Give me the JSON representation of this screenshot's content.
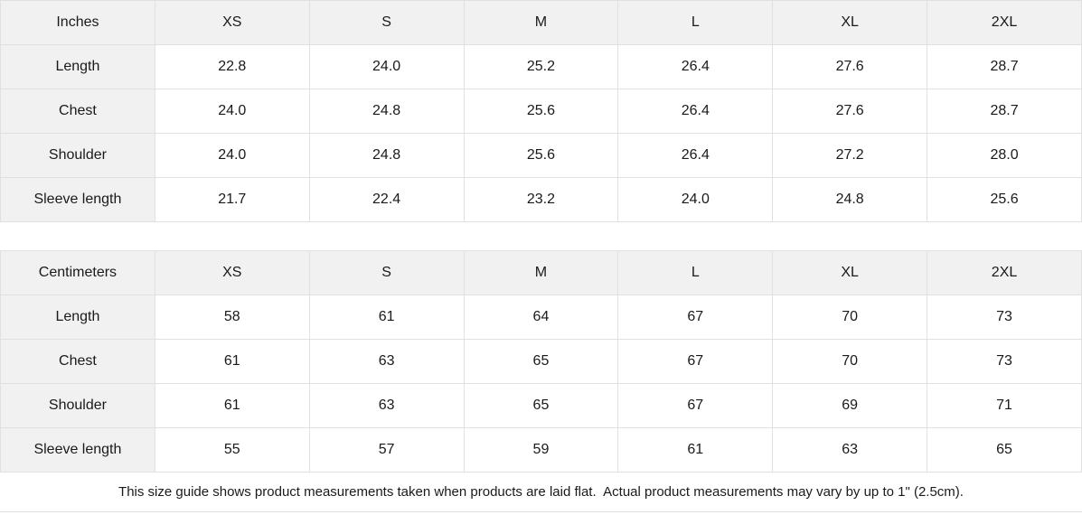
{
  "size_guide": {
    "columns": [
      "XS",
      "S",
      "M",
      "L",
      "XL",
      "2XL"
    ],
    "tables": [
      {
        "unit_label": "Inches",
        "rows": [
          {
            "label": "Length",
            "values": [
              "22.8",
              "24.0",
              "25.2",
              "26.4",
              "27.6",
              "28.7"
            ]
          },
          {
            "label": "Chest",
            "values": [
              "24.0",
              "24.8",
              "25.6",
              "26.4",
              "27.6",
              "28.7"
            ]
          },
          {
            "label": "Shoulder",
            "values": [
              "24.0",
              "24.8",
              "25.6",
              "26.4",
              "27.2",
              "28.0"
            ]
          },
          {
            "label": "Sleeve length",
            "values": [
              "21.7",
              "22.4",
              "23.2",
              "24.0",
              "24.8",
              "25.6"
            ]
          }
        ]
      },
      {
        "unit_label": "Centimeters",
        "rows": [
          {
            "label": "Length",
            "values": [
              "58",
              "61",
              "64",
              "67",
              "70",
              "73"
            ]
          },
          {
            "label": "Chest",
            "values": [
              "61",
              "63",
              "65",
              "67",
              "70",
              "73"
            ]
          },
          {
            "label": "Shoulder",
            "values": [
              "61",
              "63",
              "65",
              "67",
              "69",
              "71"
            ]
          },
          {
            "label": "Sleeve length",
            "values": [
              "55",
              "57",
              "59",
              "61",
              "63",
              "65"
            ]
          }
        ]
      }
    ],
    "footnote": "This size guide shows product measurements taken when products are laid flat.  Actual product measurements may vary by up to 1\" (2.5cm).",
    "colors": {
      "header_bg": "#f1f1f1",
      "border": "#e0e0e0",
      "text": "#1a1a1a"
    }
  }
}
